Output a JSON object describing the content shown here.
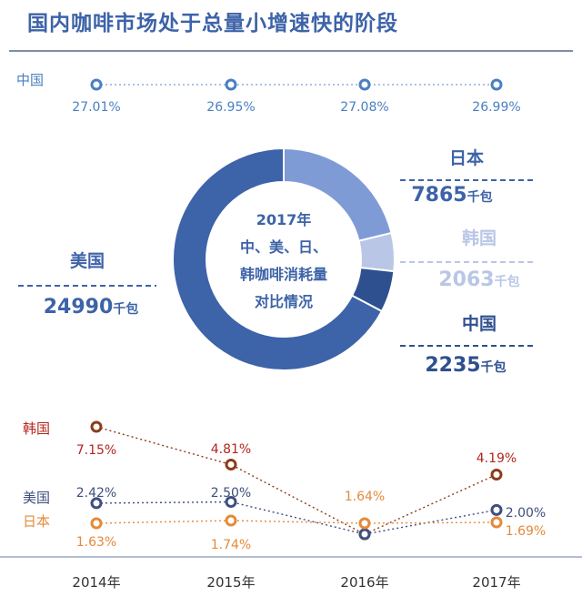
{
  "title": "国内咖啡市场处于总量小增速快的阶段",
  "colors": {
    "title": "#3d63a8",
    "china": "#4a7fc1",
    "usa": "#3d63a8",
    "japan": "#7f9bd6",
    "korea": "#b9c6e6",
    "china_share": "#2e508f",
    "korea_line": "#8b3d1a",
    "korea_label": "#b3261e",
    "usa_line": "#3f4f7f",
    "japan_line": "#e58a3a",
    "grid": "#9fb0d0"
  },
  "chart_data": [
    {
      "type": "line",
      "name": "中国",
      "x": [
        "2014年",
        "2015年",
        "2016年",
        "2017年"
      ],
      "values": [
        "27.01%",
        "26.95%",
        "27.08%",
        "26.99%"
      ]
    },
    {
      "type": "pie",
      "center_text": [
        "2017年",
        "中、美、日、",
        "韩咖啡消耗量",
        "对比情况"
      ],
      "unit": "千包",
      "slices": [
        {
          "name": "美国",
          "value": 24990
        },
        {
          "name": "日本",
          "value": 7865
        },
        {
          "name": "韩国",
          "value": 2063
        },
        {
          "name": "中国",
          "value": 2235
        }
      ]
    },
    {
      "type": "line",
      "categories": [
        "2014年",
        "2015年",
        "2016年",
        "2017年"
      ],
      "series": [
        {
          "name": "韩国",
          "values": [
            7.15,
            4.81,
            0.5,
            4.19
          ],
          "labels": [
            "7.15%",
            "4.81%",
            "",
            "4.19%"
          ]
        },
        {
          "name": "美国",
          "values": [
            2.42,
            2.5,
            0.5,
            2.0
          ],
          "labels": [
            "2.42%",
            "2.50%",
            "",
            "2.00%"
          ]
        },
        {
          "name": "日本",
          "values": [
            1.63,
            1.74,
            1.64,
            1.69
          ],
          "labels": [
            "1.63%",
            "1.74%",
            "1.64%",
            "1.69%"
          ]
        }
      ]
    }
  ]
}
